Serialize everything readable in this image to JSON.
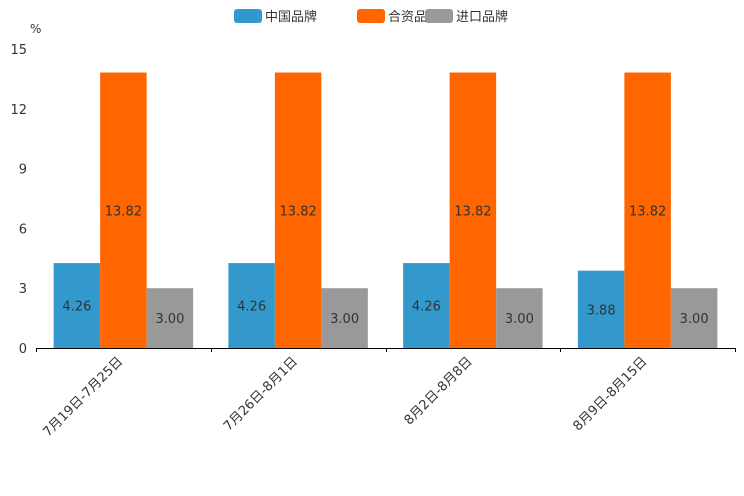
{
  "chart_data": {
    "type": "bar",
    "title": "",
    "xlabel": "",
    "ylabel": "%",
    "ylim": [
      0,
      15
    ],
    "yticks": [
      0,
      3,
      6,
      9,
      12,
      15
    ],
    "grid": false,
    "legend_position": "top-center",
    "categories": [
      "7月19日-7月25日",
      "7月26日-8月1日",
      "8月2日-8月8日",
      "8月9日-8月15日"
    ],
    "series": [
      {
        "name": "中国品牌",
        "color": "#3399cc",
        "values": [
          4.26,
          4.26,
          4.26,
          3.88
        ],
        "labels": [
          "4.26",
          "4.26",
          "4.26",
          "3.88"
        ]
      },
      {
        "name": "合资品牌",
        "color": "#ff6600",
        "values": [
          13.82,
          13.82,
          13.82,
          13.82
        ],
        "labels": [
          "13.82",
          "13.82",
          "13.82",
          "13.82"
        ]
      },
      {
        "name": "进口品牌",
        "color": "#999999",
        "values": [
          3.0,
          3.0,
          3.0,
          3.0
        ],
        "labels": [
          "3.00",
          "3.00",
          "3.00",
          "3.00"
        ]
      }
    ]
  }
}
